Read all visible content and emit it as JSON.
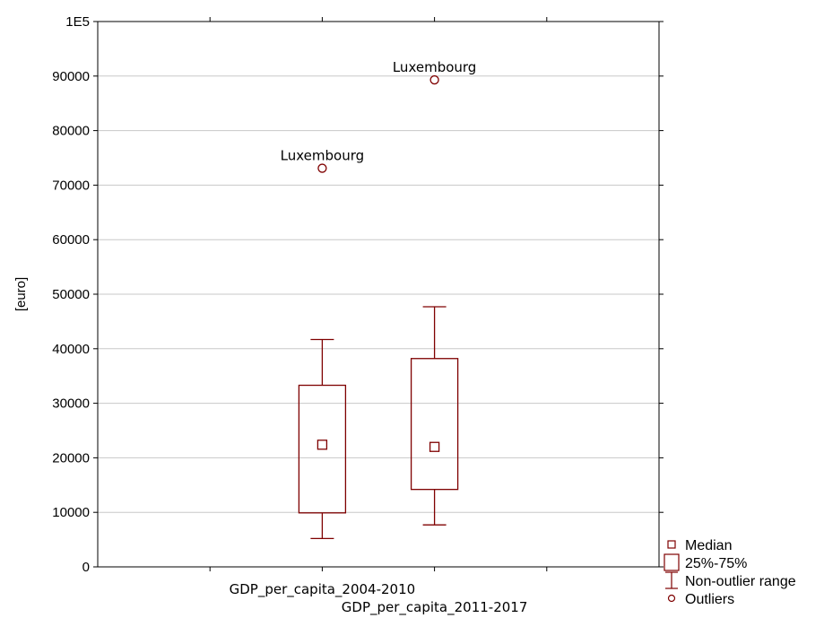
{
  "chart_data": {
    "type": "boxplot",
    "ylabel": "[euro]",
    "ylim": [
      0,
      100000
    ],
    "yticks": [
      0,
      10000,
      20000,
      30000,
      40000,
      50000,
      60000,
      70000,
      80000,
      90000,
      100000
    ],
    "ytick_labels": [
      "0",
      "10000",
      "20000",
      "30000",
      "40000",
      "50000",
      "60000",
      "70000",
      "80000",
      "90000",
      "1E5"
    ],
    "grid": true,
    "box_color": "#7f0000",
    "categories": [
      "GDP_per_capita_2004-2010",
      "GDP_per_capita_2011-2017"
    ],
    "boxes": [
      {
        "category": "GDP_per_capita_2004-2010",
        "median": 22400,
        "q1": 9900,
        "q3": 33300,
        "whisker_low": 5200,
        "whisker_high": 41700,
        "outliers": [
          {
            "value": 73100,
            "label": "Luxembourg"
          }
        ]
      },
      {
        "category": "GDP_per_capita_2011-2017",
        "median": 22000,
        "q1": 14200,
        "q3": 38200,
        "whisker_low": 7700,
        "whisker_high": 47700,
        "outliers": [
          {
            "value": 89300,
            "label": "Luxembourg"
          }
        ]
      }
    ],
    "legend": {
      "position": "bottom-right",
      "items": [
        {
          "symbol": "median",
          "label": "Median"
        },
        {
          "symbol": "box",
          "label": "25%-75%"
        },
        {
          "symbol": "whisker",
          "label": "Non-outlier range"
        },
        {
          "symbol": "outlier",
          "label": "Outliers"
        }
      ]
    }
  }
}
